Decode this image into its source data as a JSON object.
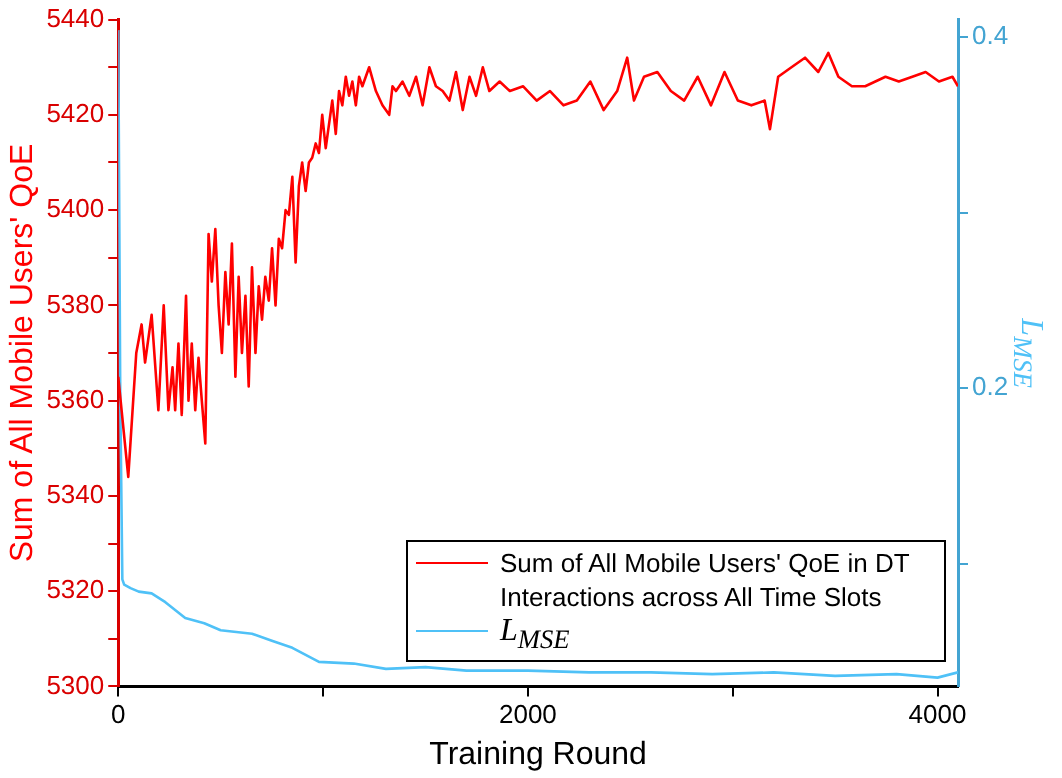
{
  "chart_data": {
    "type": "line",
    "xlabel": "Training Round",
    "ylabel": "Sum of All Mobile Users' QoE",
    "y2label": "L$_{MSE}$",
    "xlim": [
      0,
      4100
    ],
    "xticks": [
      0,
      {
        "value": 1000,
        "label": null
      },
      2000,
      {
        "value": 3000,
        "label": null
      },
      4000
    ],
    "ylim": [
      5300,
      5440
    ],
    "yticks": [
      5300,
      {
        "value": 5310,
        "label": null
      },
      5320,
      {
        "value": 5330,
        "label": null
      },
      5340,
      {
        "value": 5350,
        "label": null
      },
      5360,
      {
        "value": 5370,
        "label": null
      },
      5380,
      {
        "value": 5390,
        "label": null
      },
      5400,
      {
        "value": 5410,
        "label": null
      },
      5420,
      {
        "value": 5430,
        "label": null
      },
      5440
    ],
    "y2lim": [
      0.03,
      0.41
    ],
    "y2ticks": [
      {
        "value": 0.1,
        "label": null
      },
      0.2,
      {
        "value": 0.3,
        "label": null
      },
      0.4
    ],
    "grid": false,
    "legend": "bottom right",
    "marker": "none",
    "line_style": "solid",
    "series": [
      {
        "name": "Sum of All Mobile Users' QoE in DT Interactions across All Time Slots",
        "color": "#ff0000",
        "x": [
          0,
          49,
          88,
          114,
          131,
          163,
          196,
          222,
          245,
          265,
          278,
          294,
          310,
          331,
          343,
          359,
          376,
          392,
          408,
          425,
          441,
          457,
          474,
          490,
          506,
          523,
          539,
          555,
          572,
          588,
          604,
          621,
          637,
          653,
          670,
          686,
          702,
          718,
          735,
          751,
          768,
          784,
          800,
          817,
          833,
          850,
          866,
          882,
          898,
          915,
          931,
          947,
          964,
          980,
          996,
          1013,
          1029,
          1045,
          1062,
          1078,
          1094,
          1111,
          1127,
          1143,
          1160,
          1176,
          1192,
          1225,
          1258,
          1290,
          1323,
          1339,
          1356,
          1388,
          1421,
          1454,
          1486,
          1519,
          1551,
          1584,
          1617,
          1649,
          1682,
          1715,
          1747,
          1780,
          1812,
          1862,
          1912,
          1977,
          2043,
          2108,
          2174,
          2239,
          2305,
          2370,
          2436,
          2485,
          2518,
          2567,
          2632,
          2698,
          2763,
          2829,
          2894,
          2960,
          3025,
          3091,
          3156,
          3182,
          3222,
          3287,
          3353,
          3418,
          3467,
          3516,
          3582,
          3647,
          3746,
          3811,
          3877,
          3942,
          4007,
          4073,
          4100
        ],
        "values": [
          5365,
          5344,
          5370,
          5376,
          5368,
          5378,
          5358,
          5380,
          5358,
          5367,
          5358,
          5372,
          5357,
          5382,
          5360,
          5372,
          5358,
          5369,
          5360,
          5351,
          5395,
          5385,
          5396,
          5380,
          5370,
          5387,
          5376,
          5393,
          5365,
          5386,
          5370,
          5382,
          5363,
          5388,
          5370,
          5384,
          5377,
          5386,
          5381,
          5392,
          5380,
          5394,
          5392,
          5400,
          5399,
          5407,
          5389,
          5405,
          5410,
          5404,
          5410,
          5411,
          5414,
          5412,
          5420,
          5413,
          5418,
          5423,
          5416,
          5425,
          5422,
          5428,
          5424,
          5427,
          5422,
          5428,
          5426,
          5430,
          5425,
          5422,
          5420,
          5426,
          5425,
          5427,
          5424,
          5428,
          5422,
          5430,
          5426,
          5425,
          5423,
          5429,
          5421,
          5428,
          5424,
          5430,
          5425,
          5427,
          5425,
          5426,
          5423,
          5425,
          5422,
          5423,
          5427,
          5421,
          5425,
          5432,
          5423,
          5428,
          5429,
          5425,
          5423,
          5428,
          5422,
          5429,
          5423,
          5422,
          5423,
          5417,
          5428,
          5430,
          5432,
          5429,
          5433,
          5428,
          5426,
          5426,
          5428,
          5427,
          5428,
          5429,
          5427,
          5428,
          5426
        ]
      },
      {
        "name": "L$_{MSE}$",
        "color": "#4fc1f7",
        "axis": "y2",
        "x": [
          0,
          10,
          20,
          29,
          60,
          100,
          163,
          230,
          327,
          420,
          500,
          653,
          750,
          850,
          980,
          1150,
          1307,
          1500,
          1700,
          2000,
          2300,
          2600,
          2900,
          3200,
          3500,
          3800,
          4000,
          4100
        ],
        "values": [
          0.404,
          0.193,
          0.091,
          0.088,
          0.086,
          0.084,
          0.083,
          0.078,
          0.069,
          0.066,
          0.062,
          0.06,
          0.056,
          0.052,
          0.044,
          0.043,
          0.04,
          0.041,
          0.039,
          0.039,
          0.038,
          0.038,
          0.037,
          0.038,
          0.036,
          0.037,
          0.035,
          0.038
        ]
      }
    ]
  }
}
